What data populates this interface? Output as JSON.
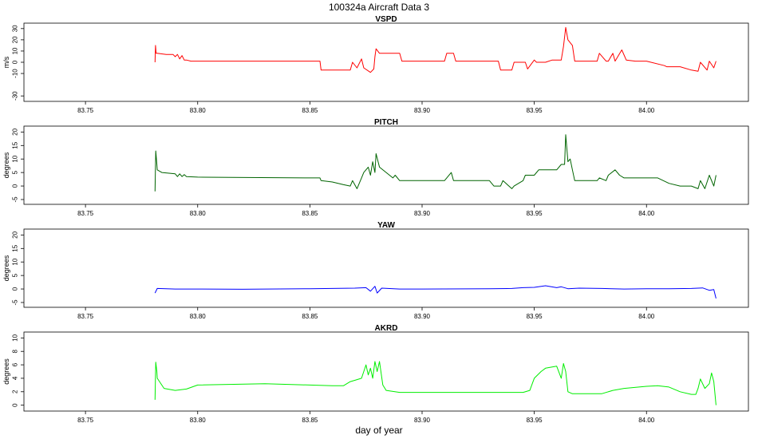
{
  "figure": {
    "title": "100324a   Aircraft Data 3",
    "xlabel": "day of year"
  },
  "chart_data": [
    {
      "type": "line",
      "title": "VSPD",
      "ylabel": "m/s",
      "color": "#ff0000",
      "xlim": [
        83.724,
        84.044
      ],
      "ylim": [
        -32,
        32
      ],
      "x_ticks": [
        83.75,
        83.8,
        83.85,
        83.9,
        83.95,
        84.0
      ],
      "x_tick_labels": [
        "83.75",
        "83.80",
        "83.85",
        "83.90",
        "83.95",
        "84.00"
      ],
      "y_ticks": [
        -30,
        -10,
        0,
        10,
        20,
        30
      ],
      "y_tick_labels": [
        "-30",
        "-10",
        "0",
        "10",
        "20",
        "30"
      ],
      "series": [
        {
          "x": [
            83.781,
            83.7812,
            83.7815,
            83.782,
            83.786,
            83.789,
            83.79,
            83.791,
            83.792,
            83.793,
            83.794,
            83.795,
            83.797,
            83.83,
            83.8545,
            83.855,
            83.862,
            83.868,
            83.869,
            83.871,
            83.873,
            83.874,
            83.877,
            83.8785,
            83.879,
            83.8795,
            83.881,
            83.882,
            83.89,
            83.891,
            83.9,
            83.91,
            83.911,
            83.914,
            83.915,
            83.93,
            83.934,
            83.935,
            83.94,
            83.941,
            83.946,
            83.947,
            83.95,
            83.951,
            83.955,
            83.958,
            83.962,
            83.963,
            83.964,
            83.965,
            83.967,
            83.968,
            83.975,
            83.978,
            83.979,
            83.982,
            83.983,
            83.985,
            83.986,
            83.989,
            83.991,
            83.995,
            84.0,
            84.008,
            84.009,
            84.015,
            84.02,
            84.023,
            84.024,
            84.027,
            84.028,
            84.03,
            84.031
          ],
          "y": [
            0,
            15,
            8,
            8,
            7,
            7,
            5,
            7,
            3,
            6,
            2,
            2,
            1,
            1,
            1,
            -7,
            -7,
            -7,
            0,
            -5,
            3,
            -5,
            -9,
            -6,
            5,
            12,
            8,
            8,
            8,
            1,
            1,
            1,
            8,
            8,
            1,
            1,
            1,
            -7,
            -7,
            0,
            0,
            -6,
            2,
            0,
            0,
            2,
            2,
            14,
            31,
            20,
            15,
            1,
            1,
            1,
            8,
            1,
            1,
            8,
            1,
            11,
            2,
            1,
            1,
            -3,
            -4,
            -4,
            -7,
            -8,
            0,
            -7,
            1,
            -5,
            1
          ]
        }
      ]
    },
    {
      "type": "line",
      "title": "PITCH",
      "ylabel": "degrees",
      "color": "#006400",
      "xlim": [
        83.724,
        84.044
      ],
      "ylim": [
        -5.6,
        21
      ],
      "x_ticks": [
        83.75,
        83.8,
        83.85,
        83.9,
        83.95,
        84.0
      ],
      "x_tick_labels": [
        "83.75",
        "83.80",
        "83.85",
        "83.90",
        "83.95",
        "84.00"
      ],
      "y_ticks": [
        -5,
        0,
        5,
        10,
        15,
        20
      ],
      "y_tick_labels": [
        "-5",
        "0",
        "5",
        "10",
        "15",
        "20"
      ],
      "series": [
        {
          "x": [
            83.781,
            83.7813,
            83.7818,
            83.782,
            83.784,
            83.79,
            83.791,
            83.792,
            83.793,
            83.794,
            83.795,
            83.8,
            83.85,
            83.8545,
            83.855,
            83.86,
            83.865,
            83.868,
            83.869,
            83.871,
            83.873,
            83.874,
            83.876,
            83.877,
            83.878,
            83.879,
            83.8795,
            83.881,
            83.884,
            83.887,
            83.888,
            83.89,
            83.91,
            83.913,
            83.914,
            83.93,
            83.932,
            83.935,
            83.936,
            83.94,
            83.941,
            83.943,
            83.945,
            83.946,
            83.95,
            83.952,
            83.955,
            83.96,
            83.962,
            83.9635,
            83.964,
            83.965,
            83.966,
            83.967,
            83.968,
            83.975,
            83.978,
            83.979,
            83.982,
            83.983,
            83.986,
            83.988,
            83.99,
            84.0,
            84.005,
            84.01,
            84.015,
            84.02,
            84.023,
            84.024,
            84.026,
            84.028,
            84.03,
            84.031
          ],
          "y": [
            -2,
            13,
            8,
            6,
            5,
            4.5,
            3.5,
            4.5,
            3.5,
            4.2,
            3.5,
            3.3,
            3,
            3,
            2,
            1.5,
            0.5,
            0,
            2,
            -1,
            3,
            5,
            7,
            4,
            9,
            5,
            12,
            7,
            5,
            3,
            4,
            2,
            2,
            5,
            2,
            2,
            0,
            0,
            2,
            -1,
            0,
            1,
            2,
            4,
            4,
            6,
            6,
            6,
            8,
            8,
            19,
            9,
            10,
            6,
            2,
            2,
            2,
            3,
            2,
            4,
            6,
            4,
            3,
            3,
            3,
            1,
            0,
            0,
            -1,
            2,
            -1,
            4,
            0,
            4
          ]
        }
      ]
    },
    {
      "type": "line",
      "title": "YAW",
      "ylabel": "degrees",
      "color": "#0000ff",
      "xlim": [
        83.724,
        84.044
      ],
      "ylim": [
        -5.6,
        21
      ],
      "x_ticks": [
        83.75,
        83.8,
        83.85,
        83.9,
        83.95,
        84.0
      ],
      "x_tick_labels": [
        "83.75",
        "83.80",
        "83.85",
        "83.90",
        "83.95",
        "84.00"
      ],
      "y_ticks": [
        -5,
        0,
        5,
        10,
        15,
        20
      ],
      "y_tick_labels": [
        "-5",
        "0",
        "5",
        "10",
        "15",
        "20"
      ],
      "series": [
        {
          "x": [
            83.781,
            83.782,
            83.79,
            83.8,
            83.82,
            83.85,
            83.87,
            83.875,
            83.877,
            83.879,
            83.88,
            83.882,
            83.89,
            83.9,
            83.93,
            83.94,
            83.945,
            83.95,
            83.955,
            83.96,
            83.962,
            83.965,
            83.97,
            83.98,
            83.99,
            84.0,
            84.01,
            84.02,
            84.025,
            84.028,
            84.03,
            84.031
          ],
          "y": [
            -1.5,
            0.2,
            0,
            0,
            -0.1,
            0.1,
            0.3,
            0.5,
            -0.8,
            1,
            -1.5,
            0.3,
            0,
            0,
            0.1,
            0.2,
            0.5,
            0.6,
            1.2,
            0.5,
            0.8,
            0.1,
            0.3,
            0.2,
            0,
            0.1,
            0.1,
            0.2,
            0.4,
            -0.5,
            -0.2,
            -3.5
          ]
        }
      ]
    },
    {
      "type": "line",
      "title": "AKRD",
      "ylabel": "degrees",
      "color": "#00ee00",
      "xlim": [
        83.724,
        84.044
      ],
      "ylim": [
        -0.4,
        10.4
      ],
      "x_ticks": [
        83.75,
        83.8,
        83.85,
        83.9,
        83.95,
        84.0
      ],
      "x_tick_labels": [
        "83.75",
        "83.80",
        "83.85",
        "83.90",
        "83.95",
        "84.00"
      ],
      "y_ticks": [
        0,
        2,
        4,
        6,
        8,
        10
      ],
      "y_tick_labels": [
        "0",
        "2",
        "4",
        "6",
        "8",
        "10"
      ],
      "series": [
        {
          "x": [
            83.781,
            83.7813,
            83.7818,
            83.782,
            83.785,
            83.79,
            83.795,
            83.8,
            83.83,
            83.85,
            83.86,
            83.865,
            83.868,
            83.87,
            83.873,
            83.875,
            83.876,
            83.877,
            83.878,
            83.879,
            83.88,
            83.881,
            83.8825,
            83.884,
            83.89,
            83.93,
            83.945,
            83.948,
            83.95,
            83.953,
            83.955,
            83.96,
            83.962,
            83.963,
            83.964,
            83.965,
            83.967,
            83.975,
            83.98,
            83.985,
            83.99,
            84.0,
            84.005,
            84.01,
            84.015,
            84.02,
            84.022,
            84.023,
            84.024,
            84.026,
            84.028,
            84.029,
            84.03,
            84.031
          ],
          "y": [
            0.8,
            6.4,
            5,
            4,
            2.5,
            2.2,
            2.4,
            3,
            3.2,
            3,
            2.9,
            2.9,
            3.5,
            3.7,
            4,
            6,
            4.5,
            5.5,
            4,
            6.5,
            5,
            6.5,
            3,
            2.2,
            1.9,
            1.9,
            1.9,
            2.2,
            4,
            5,
            5.5,
            5.8,
            4,
            6.2,
            5,
            2,
            1.7,
            1.7,
            1.7,
            2.2,
            2.5,
            2.8,
            2.9,
            2.7,
            2,
            1.6,
            1.6,
            2.5,
            3.9,
            2.5,
            3.2,
            4.8,
            3.5,
            0
          ]
        }
      ]
    }
  ]
}
